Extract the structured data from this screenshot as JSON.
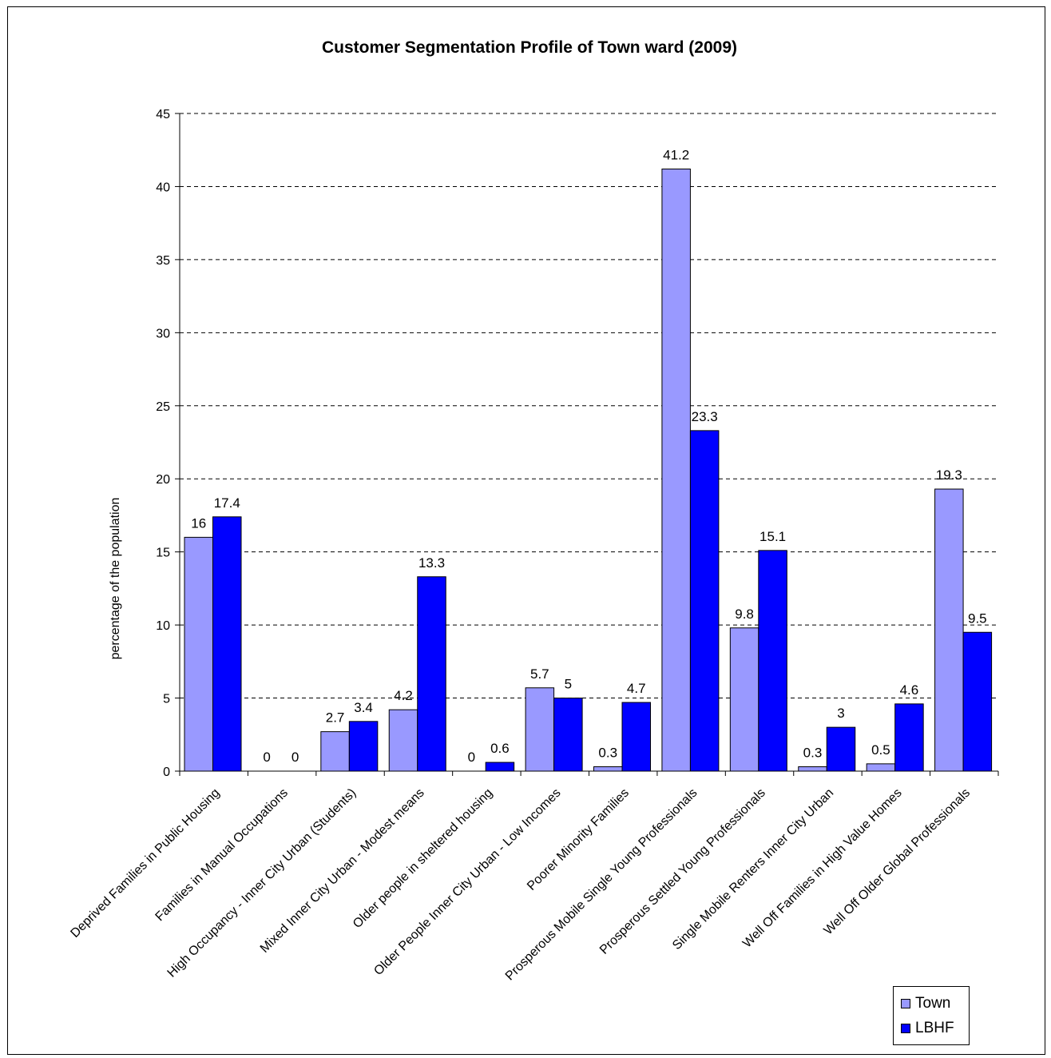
{
  "chart_data": {
    "type": "bar",
    "title": "Customer Segmentation Profile of Town ward (2009)",
    "ylabel": "percentage of the population",
    "xlabel": "",
    "ylim": [
      0,
      45
    ],
    "yticks": [
      0,
      5,
      10,
      15,
      20,
      25,
      30,
      35,
      40,
      45
    ],
    "grid": "horizontal dashed",
    "legend_position": "bottom-right",
    "categories": [
      "Deprived Families in Public Housing",
      "Families in Manual Occupations",
      "High Occupancy - Inner City Urban (Students)",
      "Mixed Inner City Urban - Modest means",
      "Older people in sheltered housing",
      "Older People Inner City Urban - Low Incomes",
      "Poorer Minority Families",
      "Prosperous Mobile Single Young Professionals",
      "Prosperous Settled Young Professionals",
      "Single Mobile Renters Inner City Urban",
      "Well Off Families in High Value Homes",
      "Well Off Older Global Professionals"
    ],
    "series": [
      {
        "name": "Town",
        "color": "#9999ff",
        "values": [
          16,
          0,
          2.7,
          4.2,
          0,
          5.7,
          0.3,
          41.2,
          9.8,
          0.3,
          0.5,
          19.3
        ]
      },
      {
        "name": "LBHF",
        "color": "#0000ff",
        "values": [
          17.4,
          0,
          3.4,
          13.3,
          0.6,
          5,
          4.7,
          23.3,
          15.1,
          3,
          4.6,
          9.5
        ]
      }
    ]
  }
}
